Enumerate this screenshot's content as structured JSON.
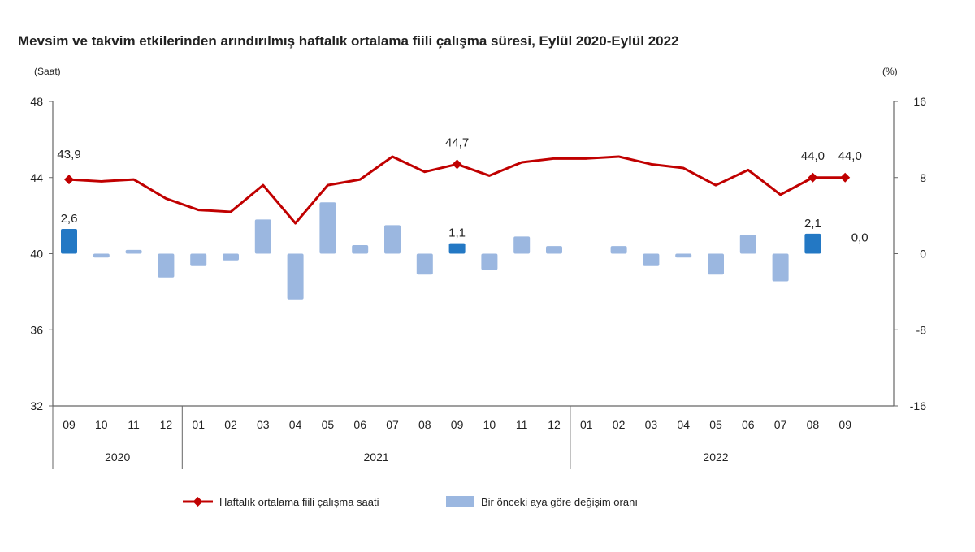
{
  "chart_data": {
    "type": "bar+line",
    "title": "Mevsim ve takvim etkilerinden arındırılmış haftalık ortalama fiili çalışma süresi, Eylül 2020-Eylül 2022",
    "ylabel_left": "(Saat)",
    "ylabel_right": "(%)",
    "ylim_left": [
      32,
      48
    ],
    "ylim_right": [
      -16,
      16
    ],
    "yticks_left": [
      "48",
      "44",
      "40",
      "36",
      "32"
    ],
    "yticks_right": [
      "16",
      "8",
      "0",
      "-8",
      "-16"
    ],
    "categories": [
      "09",
      "10",
      "11",
      "12",
      "01",
      "02",
      "03",
      "04",
      "05",
      "06",
      "07",
      "08",
      "09",
      "10",
      "11",
      "12",
      "01",
      "02",
      "03",
      "04",
      "05",
      "06",
      "07",
      "08",
      "09"
    ],
    "years": [
      {
        "label": "2020",
        "start": 0,
        "end": 3
      },
      {
        "label": "2021",
        "start": 4,
        "end": 15
      },
      {
        "label": "2022",
        "start": 16,
        "end": 24
      }
    ],
    "series": [
      {
        "name": "Haftalık ortalama fiili çalışma saati",
        "type": "line",
        "axis": "left",
        "color": "#c00000",
        "values": [
          43.9,
          43.8,
          43.9,
          42.9,
          42.3,
          42.2,
          43.6,
          41.6,
          43.6,
          43.9,
          45.1,
          44.3,
          44.7,
          44.1,
          44.8,
          45.0,
          45.0,
          45.1,
          44.7,
          44.5,
          43.6,
          44.4,
          43.1,
          44.0,
          44.0
        ],
        "labels": {
          "0": "43,9",
          "12": "44,7",
          "23": "44,0",
          "24": "44,0"
        }
      },
      {
        "name": "Bir önceki aya göre değişim oranı",
        "type": "bar",
        "axis": "right",
        "color": "#9bb7e0",
        "highlight_color": "#2378c4",
        "values": [
          2.6,
          -0.4,
          0.4,
          -2.5,
          -1.3,
          -0.7,
          3.6,
          -4.8,
          5.4,
          0.9,
          3.0,
          -2.2,
          1.1,
          -1.7,
          1.8,
          0.8,
          0.0,
          0.8,
          -1.3,
          -0.4,
          -2.2,
          2.0,
          -2.9,
          2.1,
          0.0
        ],
        "highlight": [
          0,
          12,
          23
        ],
        "labels": {
          "0": "2,6",
          "12": "1,1",
          "23": "2,1",
          "24": "0,0"
        }
      }
    ],
    "legend": "bottom"
  }
}
